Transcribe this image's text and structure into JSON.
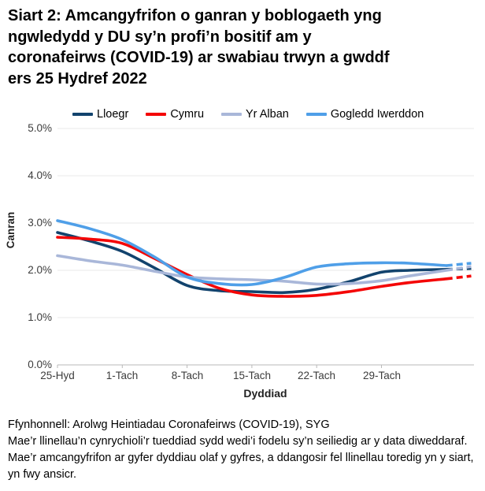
{
  "page": {
    "title_lines": [
      "Siart 2: Amcangyfrifon o ganran y boblogaeth yng",
      "ngwledydd y DU sy’n profi’n bositif am y",
      "coronafeirws (COVID-19) ar swabiau trwyn a gwddf",
      "ers 25 Hydref 2022"
    ]
  },
  "chart_data": {
    "type": "line",
    "title": "Siart 2: Amcangyfrifon o ganran y boblogaeth yng ngwledydd y DU sy’n profi’n bositif am y coronafeirws (COVID-19) ar swabiau trwyn a gwddf ers 25 Hydref 2022",
    "ylabel": "Canran",
    "xlabel": "Dyddiad",
    "ylim": [
      0,
      5
    ],
    "grid": true,
    "legend_position": "top",
    "y_tick_labels": [
      "5.0%",
      "4.0%",
      "3.0%",
      "2.0%",
      "1.0%",
      "0.0%"
    ],
    "x_tick_labels": [
      "25-Hyd",
      "1-Tach",
      "8-Tach",
      "15-Tach",
      "22-Tach",
      "29-Tach"
    ],
    "x_tick_days": [
      0,
      7,
      14,
      21,
      28,
      35
    ],
    "x_unit": "dyddiau ers 25 Hydref 2022",
    "dashed_from_day": 42,
    "dashed_meaning": "llinellau toredig = amcangyfrifon mwy ansicr ar gyfer dyddiau olaf y gyfres",
    "series": [
      {
        "name": "Lloegr",
        "color": "#12436D",
        "points": [
          [
            0,
            2.8
          ],
          [
            3.5,
            2.62
          ],
          [
            7,
            2.4
          ],
          [
            10.5,
            2.05
          ],
          [
            14,
            1.68
          ],
          [
            17.5,
            1.57
          ],
          [
            21,
            1.55
          ],
          [
            24.5,
            1.53
          ],
          [
            28,
            1.6
          ],
          [
            31.5,
            1.76
          ],
          [
            35,
            1.96
          ],
          [
            38,
            2.0
          ],
          [
            42,
            2.02
          ],
          [
            44.7,
            2.04
          ]
        ]
      },
      {
        "name": "Cymru",
        "color": "#F40606",
        "points": [
          [
            0,
            2.7
          ],
          [
            3.5,
            2.66
          ],
          [
            7,
            2.57
          ],
          [
            10.5,
            2.25
          ],
          [
            14,
            1.91
          ],
          [
            17.5,
            1.62
          ],
          [
            21,
            1.48
          ],
          [
            24.5,
            1.45
          ],
          [
            28,
            1.47
          ],
          [
            31.5,
            1.55
          ],
          [
            35,
            1.66
          ],
          [
            38,
            1.74
          ],
          [
            42,
            1.82
          ],
          [
            44.7,
            1.88
          ]
        ]
      },
      {
        "name": "Yr Alban",
        "color": "#A9B7D9",
        "points": [
          [
            0,
            2.31
          ],
          [
            3.5,
            2.2
          ],
          [
            7,
            2.11
          ],
          [
            10.5,
            1.98
          ],
          [
            14,
            1.86
          ],
          [
            17.5,
            1.82
          ],
          [
            21,
            1.8
          ],
          [
            24.5,
            1.77
          ],
          [
            28,
            1.71
          ],
          [
            31.5,
            1.72
          ],
          [
            35,
            1.78
          ],
          [
            38,
            1.88
          ],
          [
            42,
            2.0
          ],
          [
            44.7,
            2.08
          ]
        ]
      },
      {
        "name": "Gogledd Iwerddon",
        "color": "#4F9FE8",
        "points": [
          [
            0,
            3.05
          ],
          [
            3.5,
            2.88
          ],
          [
            7,
            2.65
          ],
          [
            10.5,
            2.28
          ],
          [
            14,
            1.86
          ],
          [
            17.5,
            1.72
          ],
          [
            21,
            1.7
          ],
          [
            24.5,
            1.85
          ],
          [
            28,
            2.07
          ],
          [
            31.5,
            2.14
          ],
          [
            35,
            2.16
          ],
          [
            38,
            2.15
          ],
          [
            42,
            2.1
          ],
          [
            44.7,
            2.15
          ]
        ]
      }
    ]
  },
  "footer": {
    "source": "Ffynhonnell: Arolwg Heintiadau Coronafeirws (COVID-19), SYG",
    "note": "Mae’r llinellau’n cynrychioli’r tueddiad sydd wedi’i fodelu sy’n seiliedig ar y data diweddaraf. Mae’r amcangyfrifon ar gyfer dyddiau olaf y gyfres, a ddangosir fel llinellau toredig yn y siart, yn fwy ansicr."
  }
}
